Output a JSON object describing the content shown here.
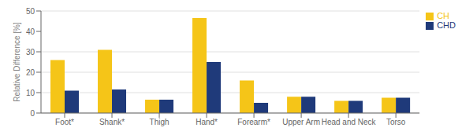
{
  "chart_data": {
    "type": "bar",
    "categories": [
      "Foot*",
      "Shank*",
      "Thigh",
      "Hand*",
      "Forearm*",
      "Upper Arm",
      "Head and Neck",
      "Torso"
    ],
    "series": [
      {
        "name": "CH",
        "color": "#F5C518",
        "values": [
          26.0,
          31.0,
          6.5,
          46.5,
          16.0,
          8.0,
          6.0,
          7.5
        ]
      },
      {
        "name": "CHD",
        "color": "#1F3A7A",
        "values": [
          11.0,
          11.5,
          6.5,
          25.0,
          5.0,
          8.0,
          6.0,
          7.5
        ]
      }
    ],
    "ylabel": "Relative Difference [%]",
    "ylim": [
      0,
      50
    ],
    "yticks": [
      0,
      10,
      20,
      30,
      40,
      50
    ],
    "grid": true,
    "legend": "right"
  }
}
